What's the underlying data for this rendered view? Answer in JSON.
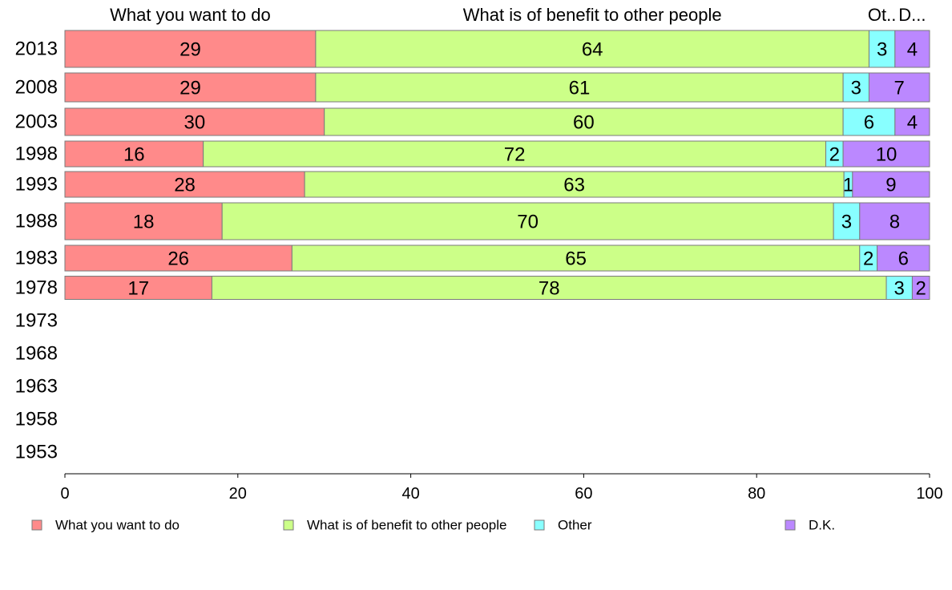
{
  "chart_data": {
    "type": "bar",
    "orientation": "horizontal",
    "stacked": true,
    "title": "",
    "xlabel": "",
    "ylabel": "",
    "xlim": [
      0,
      100
    ],
    "x_ticks": [
      0,
      20,
      40,
      60,
      80,
      100
    ],
    "categories": [
      "2013",
      "2008",
      "2003",
      "1998",
      "1993",
      "1988",
      "1983",
      "1978",
      "1973",
      "1968",
      "1963",
      "1958",
      "1953"
    ],
    "series": [
      {
        "name": "What you want to do",
        "color": "#ff8a8a",
        "header": "What you want to do",
        "values": [
          29,
          29,
          30,
          16,
          28,
          18,
          26,
          17,
          null,
          null,
          null,
          null,
          null
        ]
      },
      {
        "name": "What is of benefit to other people",
        "color": "#ccff88",
        "header": "What is of benefit to other people",
        "values": [
          64,
          61,
          60,
          72,
          63,
          70,
          65,
          78,
          null,
          null,
          null,
          null,
          null
        ]
      },
      {
        "name": "Other",
        "color": "#88ffff",
        "header": "Ot..",
        "values": [
          3,
          3,
          6,
          2,
          1,
          3,
          2,
          3,
          null,
          null,
          null,
          null,
          null
        ]
      },
      {
        "name": "D.K.",
        "color": "#bb88ff",
        "header": "D...",
        "values": [
          4,
          7,
          4,
          10,
          9,
          8,
          6,
          2,
          null,
          null,
          null,
          null,
          null
        ]
      }
    ],
    "grid": false,
    "legend_position": "bottom"
  }
}
